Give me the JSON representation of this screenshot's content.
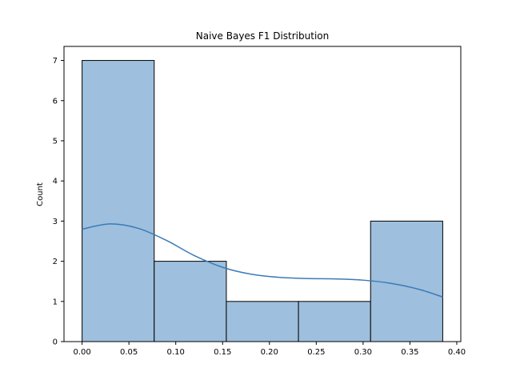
{
  "chart_data": {
    "type": "bar",
    "title": "Naive Bayes F1 Distribution",
    "xlabel": "",
    "ylabel": "Count",
    "bins": [
      {
        "start": 0.0,
        "end": 0.077,
        "count": 7
      },
      {
        "start": 0.077,
        "end": 0.154,
        "count": 2
      },
      {
        "start": 0.154,
        "end": 0.231,
        "count": 1
      },
      {
        "start": 0.231,
        "end": 0.308,
        "count": 1
      },
      {
        "start": 0.308,
        "end": 0.385,
        "count": 3
      }
    ],
    "kde": {
      "x": [
        0.0,
        0.03,
        0.06,
        0.09,
        0.12,
        0.15,
        0.18,
        0.21,
        0.24,
        0.27,
        0.3,
        0.33,
        0.36,
        0.385
      ],
      "y": [
        2.8,
        2.93,
        2.82,
        2.52,
        2.14,
        1.85,
        1.68,
        1.6,
        1.57,
        1.56,
        1.53,
        1.45,
        1.3,
        1.11
      ]
    },
    "xlim": [
      -0.0193,
      0.4043
    ],
    "ylim": [
      0,
      7.35
    ],
    "xticks": [
      0.0,
      0.05,
      0.1,
      0.15,
      0.2,
      0.25,
      0.3,
      0.35,
      0.4
    ],
    "xtick_labels": [
      "0.00",
      "0.05",
      "0.10",
      "0.15",
      "0.20",
      "0.25",
      "0.30",
      "0.35",
      "0.40"
    ],
    "yticks": [
      0,
      1,
      2,
      3,
      4,
      5,
      6,
      7
    ],
    "ytick_labels": [
      "0",
      "1",
      "2",
      "3",
      "4",
      "5",
      "6",
      "7"
    ],
    "grid": false,
    "colors": {
      "bar_fill": "#9ebfdd",
      "bar_edge": "#000000",
      "kde_line": "#3a7bb8"
    }
  }
}
